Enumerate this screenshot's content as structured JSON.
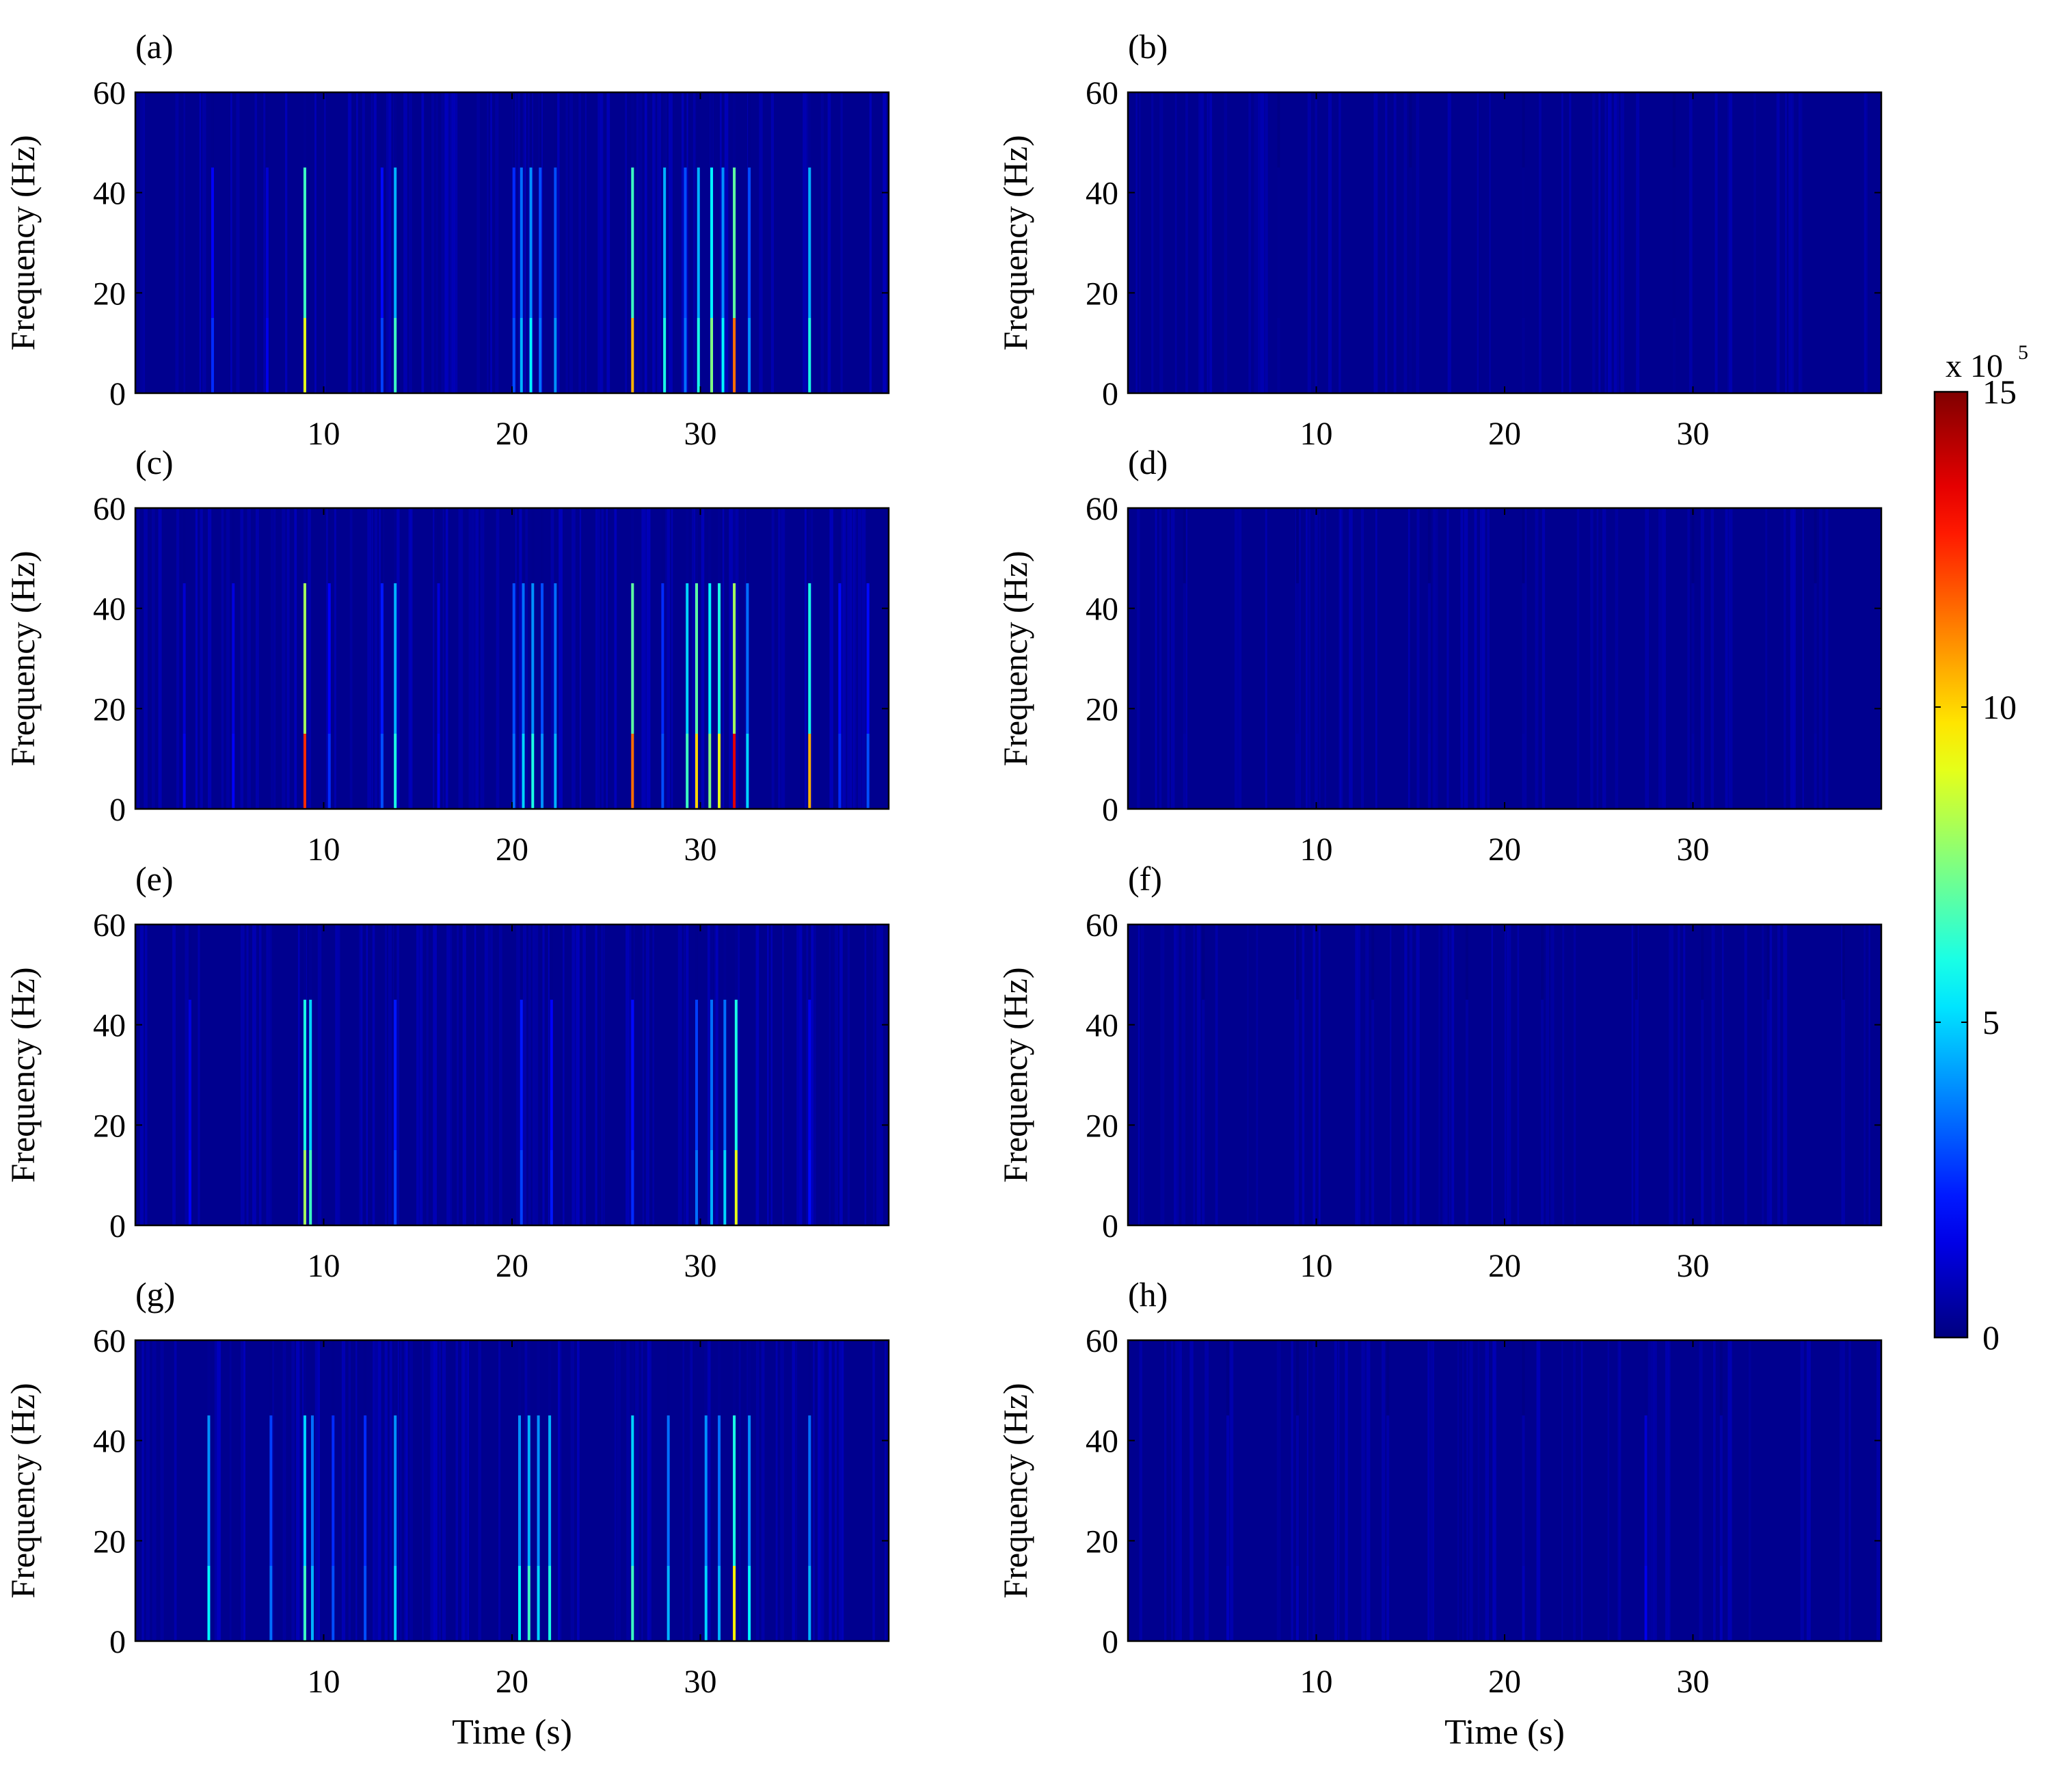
{
  "figure": {
    "colorbar": {
      "label": "x 10",
      "exponent": "5",
      "ticks": [
        "0",
        "5",
        "10",
        "15"
      ],
      "tick_values": [
        0,
        5,
        10,
        15
      ],
      "colormap": "jet"
    },
    "colors": {
      "background": "#000080",
      "frame": "#000000"
    }
  },
  "chart_data": [
    {
      "type": "heatmap",
      "panel_label": "(a)",
      "ylabel": "Frequency (Hz)",
      "xlabel": "",
      "xlim": [
        0,
        40
      ],
      "ylim": [
        0,
        60
      ],
      "xticks": [
        "10",
        "20",
        "30"
      ],
      "yticks": [
        "0",
        "20",
        "40",
        "60"
      ],
      "clim": [
        0,
        15
      ],
      "unit_scale": "x 10^5",
      "bands_hz": [
        [
          0,
          15
        ],
        [
          15,
          45
        ],
        [
          45,
          60
        ]
      ],
      "events": [
        {
          "t": 4.1,
          "v": [
            2.5,
            1.8,
            0.2
          ]
        },
        {
          "t": 7.0,
          "v": [
            1.6,
            1.2,
            0.2
          ]
        },
        {
          "t": 9.0,
          "v": [
            9.0,
            6.5,
            0.3
          ]
        },
        {
          "t": 13.1,
          "v": [
            2.8,
            2.0,
            0.2
          ]
        },
        {
          "t": 13.8,
          "v": [
            6.5,
            4.5,
            0.3
          ]
        },
        {
          "t": 20.1,
          "v": [
            3.0,
            2.5,
            0.2
          ]
        },
        {
          "t": 20.5,
          "v": [
            4.5,
            3.5,
            0.2
          ]
        },
        {
          "t": 21.0,
          "v": [
            5.5,
            4.0,
            0.2
          ]
        },
        {
          "t": 21.5,
          "v": [
            3.5,
            3.0,
            0.2
          ]
        },
        {
          "t": 22.3,
          "v": [
            4.0,
            3.0,
            0.2
          ]
        },
        {
          "t": 26.4,
          "v": [
            10.5,
            6.5,
            0.3
          ]
        },
        {
          "t": 28.1,
          "v": [
            6.0,
            4.5,
            0.3
          ]
        },
        {
          "t": 29.2,
          "v": [
            3.5,
            3.0,
            0.2
          ]
        },
        {
          "t": 29.9,
          "v": [
            6.0,
            4.5,
            0.2
          ]
        },
        {
          "t": 30.6,
          "v": [
            7.5,
            5.5,
            0.3
          ]
        },
        {
          "t": 31.2,
          "v": [
            5.5,
            4.0,
            0.2
          ]
        },
        {
          "t": 31.8,
          "v": [
            11.5,
            7.0,
            0.3
          ]
        },
        {
          "t": 32.6,
          "v": [
            4.0,
            3.0,
            0.2
          ]
        },
        {
          "t": 35.8,
          "v": [
            6.0,
            4.5,
            0.3
          ]
        }
      ]
    },
    {
      "type": "heatmap",
      "panel_label": "(b)",
      "ylabel": "Frequency (Hz)",
      "xlabel": "",
      "xlim": [
        0,
        40
      ],
      "ylim": [
        0,
        60
      ],
      "xticks": [
        "10",
        "20",
        "30"
      ],
      "yticks": [
        "0",
        "20",
        "40",
        "60"
      ],
      "clim": [
        0,
        15
      ],
      "unit_scale": "x 10^5",
      "bands_hz": [
        [
          0,
          15
        ],
        [
          15,
          45
        ],
        [
          45,
          60
        ]
      ],
      "events": [
        {
          "t": 8.0,
          "v": [
            0.35,
            0.25,
            0.1
          ]
        },
        {
          "t": 15.0,
          "v": [
            0.3,
            0.25,
            0.1
          ]
        },
        {
          "t": 21.0,
          "v": [
            0.35,
            0.25,
            0.1
          ]
        },
        {
          "t": 29.0,
          "v": [
            0.3,
            0.2,
            0.1
          ]
        }
      ]
    },
    {
      "type": "heatmap",
      "panel_label": "(c)",
      "ylabel": "Frequency (Hz)",
      "xlabel": "",
      "xlim": [
        0,
        40
      ],
      "ylim": [
        0,
        60
      ],
      "xticks": [
        "10",
        "20",
        "30"
      ],
      "yticks": [
        "0",
        "20",
        "40",
        "60"
      ],
      "clim": [
        0,
        15
      ],
      "unit_scale": "x 10^5",
      "bands_hz": [
        [
          0,
          15
        ],
        [
          15,
          45
        ],
        [
          45,
          60
        ]
      ],
      "events": [
        {
          "t": 2.6,
          "v": [
            1.6,
            1.2,
            0.2
          ]
        },
        {
          "t": 5.2,
          "v": [
            1.8,
            1.4,
            0.2
          ]
        },
        {
          "t": 9.0,
          "v": [
            12.5,
            8.0,
            0.4
          ]
        },
        {
          "t": 10.3,
          "v": [
            2.5,
            1.8,
            0.2
          ]
        },
        {
          "t": 13.1,
          "v": [
            3.0,
            2.2,
            0.2
          ]
        },
        {
          "t": 13.8,
          "v": [
            6.0,
            4.5,
            0.3
          ]
        },
        {
          "t": 16.1,
          "v": [
            1.6,
            1.3,
            0.2
          ]
        },
        {
          "t": 20.1,
          "v": [
            3.5,
            3.0,
            0.2
          ]
        },
        {
          "t": 20.6,
          "v": [
            5.0,
            3.5,
            0.2
          ]
        },
        {
          "t": 21.1,
          "v": [
            6.0,
            4.0,
            0.2
          ]
        },
        {
          "t": 21.6,
          "v": [
            4.0,
            3.0,
            0.2
          ]
        },
        {
          "t": 22.3,
          "v": [
            4.5,
            3.5,
            0.2
          ]
        },
        {
          "t": 26.4,
          "v": [
            11.5,
            7.0,
            0.3
          ]
        },
        {
          "t": 28.0,
          "v": [
            3.0,
            2.5,
            0.2
          ]
        },
        {
          "t": 29.3,
          "v": [
            6.5,
            5.0,
            0.3
          ]
        },
        {
          "t": 29.8,
          "v": [
            10.0,
            7.0,
            0.3
          ]
        },
        {
          "t": 30.5,
          "v": [
            7.5,
            5.5,
            0.3
          ]
        },
        {
          "t": 31.0,
          "v": [
            9.0,
            6.0,
            0.3
          ]
        },
        {
          "t": 31.8,
          "v": [
            13.5,
            8.0,
            0.4
          ]
        },
        {
          "t": 32.5,
          "v": [
            5.0,
            3.5,
            0.2
          ]
        },
        {
          "t": 35.8,
          "v": [
            10.5,
            6.0,
            0.3
          ]
        },
        {
          "t": 37.4,
          "v": [
            2.5,
            2.0,
            0.2
          ]
        },
        {
          "t": 38.9,
          "v": [
            3.0,
            2.0,
            0.2
          ]
        }
      ]
    },
    {
      "type": "heatmap",
      "panel_label": "(d)",
      "ylabel": "Frequency (Hz)",
      "xlabel": "",
      "xlim": [
        0,
        40
      ],
      "ylim": [
        0,
        60
      ],
      "xticks": [
        "10",
        "20",
        "30"
      ],
      "yticks": [
        "0",
        "20",
        "40",
        "60"
      ],
      "clim": [
        0,
        15
      ],
      "unit_scale": "x 10^5",
      "bands_hz": [
        [
          0,
          15
        ],
        [
          15,
          45
        ],
        [
          45,
          60
        ]
      ],
      "events": [
        {
          "t": 3.0,
          "v": [
            0.5,
            0.4,
            0.1
          ]
        },
        {
          "t": 9.0,
          "v": [
            0.5,
            0.4,
            0.1
          ]
        },
        {
          "t": 16.0,
          "v": [
            0.6,
            0.5,
            0.1
          ]
        },
        {
          "t": 21.0,
          "v": [
            0.5,
            0.4,
            0.1
          ]
        },
        {
          "t": 30.0,
          "v": [
            0.5,
            0.4,
            0.1
          ]
        },
        {
          "t": 36.5,
          "v": [
            0.5,
            0.4,
            0.1
          ]
        }
      ]
    },
    {
      "type": "heatmap",
      "panel_label": "(e)",
      "ylabel": "Frequency (Hz)",
      "xlabel": "",
      "xlim": [
        0,
        40
      ],
      "ylim": [
        0,
        60
      ],
      "xticks": [
        "10",
        "20",
        "30"
      ],
      "yticks": [
        "0",
        "20",
        "40",
        "60"
      ],
      "clim": [
        0,
        15
      ],
      "unit_scale": "x 10^5",
      "bands_hz": [
        [
          0,
          15
        ],
        [
          15,
          45
        ],
        [
          45,
          60
        ]
      ],
      "events": [
        {
          "t": 2.9,
          "v": [
            1.8,
            1.4,
            0.2
          ]
        },
        {
          "t": 9.0,
          "v": [
            8.0,
            6.0,
            0.3
          ]
        },
        {
          "t": 9.3,
          "v": [
            6.5,
            5.0,
            0.3
          ]
        },
        {
          "t": 13.8,
          "v": [
            2.8,
            2.2,
            0.2
          ]
        },
        {
          "t": 20.5,
          "v": [
            2.8,
            2.2,
            0.2
          ]
        },
        {
          "t": 22.1,
          "v": [
            2.2,
            1.8,
            0.2
          ]
        },
        {
          "t": 26.4,
          "v": [
            2.5,
            2.0,
            0.2
          ]
        },
        {
          "t": 29.8,
          "v": [
            3.5,
            2.8,
            0.2
          ]
        },
        {
          "t": 30.6,
          "v": [
            4.5,
            3.5,
            0.3
          ]
        },
        {
          "t": 31.3,
          "v": [
            5.0,
            3.5,
            0.3
          ]
        },
        {
          "t": 31.9,
          "v": [
            9.0,
            6.0,
            0.3
          ]
        },
        {
          "t": 35.8,
          "v": [
            2.0,
            1.6,
            0.2
          ]
        }
      ]
    },
    {
      "type": "heatmap",
      "panel_label": "(f)",
      "ylabel": "Frequency (Hz)",
      "xlabel": "",
      "xlim": [
        0,
        40
      ],
      "ylim": [
        0,
        60
      ],
      "xticks": [
        "10",
        "20",
        "30"
      ],
      "yticks": [
        "0",
        "20",
        "40",
        "60"
      ],
      "clim": [
        0,
        15
      ],
      "unit_scale": "x 10^5",
      "bands_hz": [
        [
          0,
          15
        ],
        [
          15,
          45
        ],
        [
          45,
          60
        ]
      ],
      "events": [
        {
          "t": 4.0,
          "v": [
            0.6,
            0.5,
            0.1
          ]
        },
        {
          "t": 9.0,
          "v": [
            0.6,
            0.5,
            0.1
          ]
        },
        {
          "t": 13.0,
          "v": [
            0.6,
            0.5,
            0.1
          ]
        },
        {
          "t": 18.0,
          "v": [
            0.6,
            0.5,
            0.1
          ]
        },
        {
          "t": 22.0,
          "v": [
            0.6,
            0.5,
            0.1
          ]
        },
        {
          "t": 27.0,
          "v": [
            0.6,
            0.5,
            0.1
          ]
        },
        {
          "t": 30.5,
          "v": [
            0.7,
            0.5,
            0.1
          ]
        },
        {
          "t": 34.0,
          "v": [
            0.6,
            0.5,
            0.1
          ]
        },
        {
          "t": 38.0,
          "v": [
            0.6,
            0.5,
            0.1
          ]
        }
      ]
    },
    {
      "type": "heatmap",
      "panel_label": "(g)",
      "ylabel": "Frequency (Hz)",
      "xlabel": "Time (s)",
      "xlim": [
        0,
        40
      ],
      "ylim": [
        0,
        60
      ],
      "xticks": [
        "10",
        "20",
        "30"
      ],
      "yticks": [
        "0",
        "20",
        "40",
        "60"
      ],
      "clim": [
        0,
        15
      ],
      "unit_scale": "x 10^5",
      "bands_hz": [
        [
          0,
          15
        ],
        [
          15,
          45
        ],
        [
          45,
          60
        ]
      ],
      "events": [
        {
          "t": 3.9,
          "v": [
            5.5,
            4.0,
            0.3
          ]
        },
        {
          "t": 7.2,
          "v": [
            3.5,
            2.8,
            0.2
          ]
        },
        {
          "t": 9.0,
          "v": [
            6.5,
            5.0,
            0.3
          ]
        },
        {
          "t": 9.4,
          "v": [
            4.5,
            3.5,
            0.2
          ]
        },
        {
          "t": 10.5,
          "v": [
            3.0,
            2.5,
            0.2
          ]
        },
        {
          "t": 12.2,
          "v": [
            3.0,
            2.5,
            0.2
          ]
        },
        {
          "t": 13.8,
          "v": [
            5.0,
            4.0,
            0.3
          ]
        },
        {
          "t": 20.4,
          "v": [
            5.5,
            4.0,
            0.3
          ]
        },
        {
          "t": 20.9,
          "v": [
            6.5,
            4.5,
            0.3
          ]
        },
        {
          "t": 21.4,
          "v": [
            5.0,
            4.0,
            0.3
          ]
        },
        {
          "t": 22.0,
          "v": [
            6.0,
            4.5,
            0.3
          ]
        },
        {
          "t": 26.4,
          "v": [
            6.5,
            5.0,
            0.3
          ]
        },
        {
          "t": 28.3,
          "v": [
            4.5,
            3.5,
            0.2
          ]
        },
        {
          "t": 30.3,
          "v": [
            5.0,
            4.0,
            0.3
          ]
        },
        {
          "t": 31.0,
          "v": [
            4.5,
            3.5,
            0.3
          ]
        },
        {
          "t": 31.8,
          "v": [
            9.5,
            6.0,
            0.3
          ]
        },
        {
          "t": 32.6,
          "v": [
            5.5,
            4.0,
            0.3
          ]
        },
        {
          "t": 35.8,
          "v": [
            4.5,
            3.5,
            0.2
          ]
        }
      ]
    },
    {
      "type": "heatmap",
      "panel_label": "(h)",
      "ylabel": "Frequency (Hz)",
      "xlabel": "Time (s)",
      "xlim": [
        0,
        40
      ],
      "ylim": [
        0,
        60
      ],
      "xticks": [
        "10",
        "20",
        "30"
      ],
      "yticks": [
        "0",
        "20",
        "40",
        "60"
      ],
      "clim": [
        0,
        15
      ],
      "unit_scale": "x 10^5",
      "bands_hz": [
        [
          0,
          15
        ],
        [
          15,
          45
        ],
        [
          45,
          60
        ]
      ],
      "events": [
        {
          "t": 5.3,
          "v": [
            0.9,
            0.7,
            0.1
          ]
        },
        {
          "t": 9.0,
          "v": [
            0.8,
            0.6,
            0.1
          ]
        },
        {
          "t": 13.8,
          "v": [
            0.7,
            0.6,
            0.1
          ]
        },
        {
          "t": 21.0,
          "v": [
            0.8,
            0.6,
            0.1
          ]
        },
        {
          "t": 27.5,
          "v": [
            1.6,
            1.2,
            0.2
          ]
        },
        {
          "t": 31.5,
          "v": [
            0.8,
            0.6,
            0.1
          ]
        }
      ]
    }
  ]
}
